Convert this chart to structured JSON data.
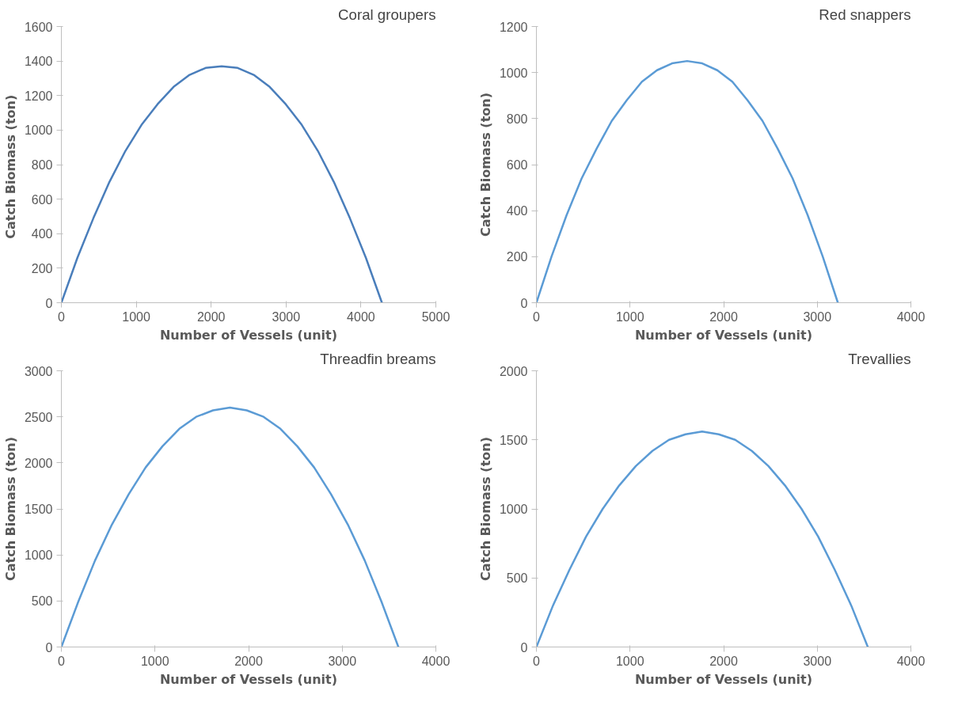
{
  "chart_data": [
    {
      "type": "line",
      "title": "Coral groupers",
      "xlabel": "Number of Vessels (unit)",
      "ylabel": "Catch Biomass  (ton)",
      "xlim": [
        0,
        5000
      ],
      "xticks": [
        0,
        1000,
        2000,
        3000,
        4000,
        5000
      ],
      "ylim": [
        0,
        1600
      ],
      "yticks": [
        0,
        200,
        400,
        600,
        800,
        1000,
        1200,
        1400,
        1600
      ],
      "series": [
        {
          "color": "#4a7ebb",
          "x": [
            0,
            214,
            428,
            642,
            856,
            1070,
            1284,
            1498,
            1712,
            1926,
            2140,
            2354,
            2568,
            2782,
            2996,
            3210,
            3424,
            3638,
            3852,
            4066,
            4280
          ],
          "values": [
            0,
            260,
            490,
            700,
            880,
            1030,
            1150,
            1250,
            1320,
            1360,
            1370,
            1360,
            1320,
            1250,
            1150,
            1030,
            880,
            700,
            490,
            260,
            0
          ]
        }
      ]
    },
    {
      "type": "line",
      "title": "Red snappers",
      "xlabel": "Number of Vessels (unit)",
      "ylabel": "Catch Biomass (ton)",
      "xlim": [
        0,
        4000
      ],
      "xticks": [
        0,
        1000,
        2000,
        3000,
        4000
      ],
      "ylim": [
        0,
        1200
      ],
      "yticks": [
        0,
        200,
        400,
        600,
        800,
        1000,
        1200
      ],
      "series": [
        {
          "color": "#5b9bd5",
          "x": [
            0,
            161,
            322,
            483,
            644,
            805,
            966,
            1127,
            1288,
            1449,
            1610,
            1771,
            1932,
            2093,
            2254,
            2415,
            2576,
            2737,
            2898,
            3059,
            3220
          ],
          "values": [
            0,
            200,
            380,
            540,
            670,
            790,
            880,
            960,
            1010,
            1040,
            1050,
            1040,
            1010,
            960,
            880,
            790,
            670,
            540,
            380,
            200,
            0
          ]
        }
      ]
    },
    {
      "type": "line",
      "title": "Threadfin breams",
      "xlabel": "Number of Vessels (unit)",
      "ylabel": "Catch Biomass (ton)",
      "xlim": [
        0,
        4000
      ],
      "xticks": [
        0,
        1000,
        2000,
        3000,
        4000
      ],
      "ylim": [
        0,
        3000
      ],
      "yticks": [
        0,
        500,
        1000,
        1500,
        2000,
        2500,
        3000
      ],
      "series": [
        {
          "color": "#5b9bd5",
          "x": [
            0,
            180,
            360,
            540,
            720,
            900,
            1080,
            1260,
            1440,
            1620,
            1800,
            1980,
            2160,
            2340,
            2520,
            2700,
            2880,
            3060,
            3240,
            3420,
            3600
          ],
          "values": [
            0,
            490,
            940,
            1330,
            1660,
            1950,
            2180,
            2370,
            2500,
            2570,
            2600,
            2570,
            2500,
            2370,
            2180,
            1950,
            1660,
            1330,
            940,
            490,
            0
          ]
        }
      ]
    },
    {
      "type": "line",
      "title": "Trevallies",
      "xlabel": "Number of Vessels (unit)",
      "ylabel": "Catch Biomass (ton)",
      "xlim": [
        0,
        4000
      ],
      "xticks": [
        0,
        1000,
        2000,
        3000,
        4000
      ],
      "ylim": [
        0,
        2000
      ],
      "yticks": [
        0,
        500,
        1000,
        1500,
        2000
      ],
      "series": [
        {
          "color": "#5b9bd5",
          "x": [
            0,
            177,
            354,
            531,
            708,
            885,
            1062,
            1239,
            1416,
            1593,
            1770,
            1947,
            2124,
            2301,
            2478,
            2655,
            2832,
            3009,
            3186,
            3363,
            3540
          ],
          "values": [
            0,
            300,
            560,
            800,
            1000,
            1170,
            1310,
            1420,
            1500,
            1540,
            1560,
            1540,
            1500,
            1420,
            1310,
            1170,
            1000,
            800,
            560,
            300,
            0
          ]
        }
      ]
    }
  ]
}
